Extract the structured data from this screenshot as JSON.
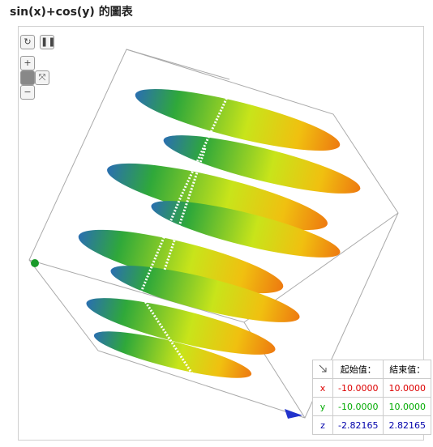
{
  "header": {
    "title": "sin(x)+cos(y) 的圖表"
  },
  "table": {
    "header": [
      "起始值：",
      "結束值："
    ],
    "rows": [
      [
        "x",
        "-10.0000",
        "10.0000"
      ],
      [
        "y",
        "-10.0000",
        "10.0000"
      ],
      [
        "z",
        "-2.82165",
        "2.82165"
      ]
    ]
  }
}
